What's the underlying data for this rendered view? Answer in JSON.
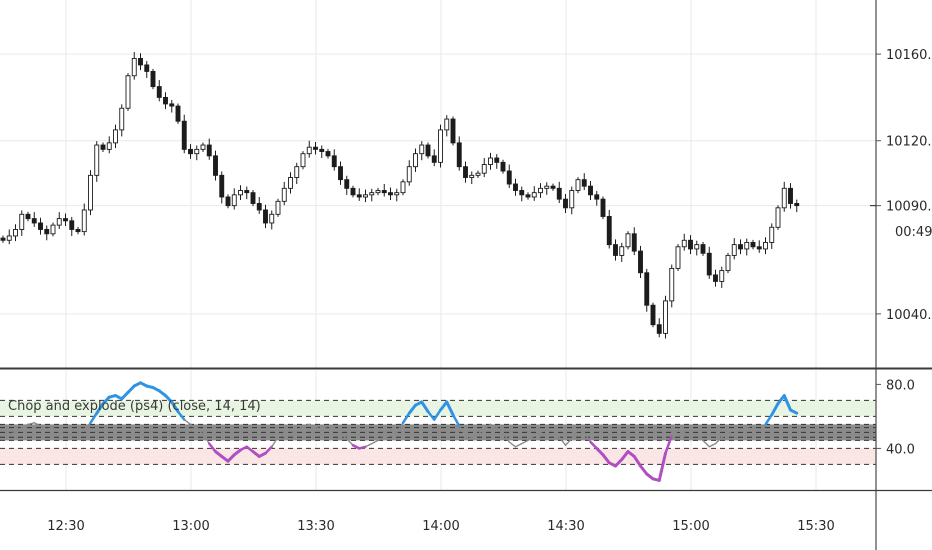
{
  "chart_data": [
    {
      "type": "candlestick",
      "pane": "price",
      "ylim": [
        10015,
        10185
      ],
      "y_ticks": [
        {
          "value": 10040,
          "label": "10040.0"
        },
        {
          "value": 10090,
          "label": "10090.0"
        },
        {
          "value": 10120,
          "label": "10120.0"
        },
        {
          "value": 10160,
          "label": "10160.0"
        }
      ],
      "current_price_label": "10090.0",
      "countdown_label": "00:49",
      "series": [
        {
          "name": "close",
          "values": [
            10074,
            10076,
            10079,
            10086,
            10084,
            10082,
            10079,
            10077,
            10081,
            10084,
            10083,
            10079,
            10078,
            10088,
            10104,
            10118,
            10116,
            10119,
            10125,
            10135,
            10150,
            10158,
            10155,
            10152,
            10145,
            10140,
            10137,
            10136,
            10129,
            10116,
            10114,
            10116,
            10118,
            10113,
            10104,
            10094,
            10090,
            10095,
            10097,
            10096,
            10091,
            10088,
            10082,
            10086,
            10092,
            10098,
            10103,
            10108,
            10114,
            10117,
            10116,
            10115,
            10113,
            10108,
            10102,
            10098,
            10095,
            10094,
            10095,
            10096,
            10097,
            10096,
            10095,
            10096,
            10101,
            10108,
            10114,
            10118,
            10113,
            10110,
            10125,
            10130,
            10119,
            10108,
            10103,
            10104,
            10105,
            10109,
            10112,
            10110,
            10106,
            10100,
            10097,
            10095,
            10094,
            10096,
            10098,
            10099,
            10098,
            10093,
            10089,
            10097,
            10102,
            10099,
            10095,
            10093,
            10085,
            10072,
            10067,
            10071,
            10077,
            10069,
            10059,
            10044,
            10035,
            10031,
            10046,
            10061,
            10071,
            10074,
            10070,
            10072,
            10068,
            10058,
            10055,
            10060,
            10067,
            10072,
            10070,
            10073,
            10071,
            10070,
            10073,
            10080,
            10089,
            10098,
            10091,
            10090
          ]
        }
      ]
    },
    {
      "type": "line",
      "pane": "indicator",
      "title": "Chop and explode (ps4) (close, 14, 14)",
      "ylim": [
        14,
        89
      ],
      "y_ticks": [
        {
          "value": 80,
          "label": "80.0"
        },
        {
          "value": 40,
          "label": "40.0"
        }
      ],
      "reference_lines": [
        70,
        60,
        55,
        53,
        50,
        47,
        45,
        40,
        30
      ],
      "bands": [
        {
          "from": 60,
          "to": 70,
          "color": "#e9f5e3"
        },
        {
          "from": 30,
          "to": 40,
          "color": "#fbe6e6"
        },
        {
          "from": 45,
          "to": 55,
          "color": "#7e7e7e"
        }
      ],
      "thresholds": {
        "upper": 60,
        "lower": 40
      },
      "colors": {
        "upper": "#2f93e6",
        "lower": "#b04ec2",
        "mid": "#8a8a8a"
      },
      "series": [
        {
          "values": [
            48,
            49,
            50,
            53,
            55,
            56,
            54,
            52,
            53,
            50,
            49,
            48,
            49,
            52,
            56,
            62,
            68,
            72,
            73,
            71,
            75,
            79,
            81,
            79,
            78,
            76,
            73,
            69,
            63,
            58,
            55,
            52,
            49,
            43,
            38,
            35,
            32,
            36,
            39,
            41,
            38,
            35,
            37,
            41,
            47,
            50,
            49,
            51,
            54,
            55,
            53,
            52,
            54,
            53,
            49,
            46,
            42,
            40,
            41,
            43,
            45,
            47,
            48,
            50,
            56,
            62,
            67,
            69,
            63,
            58,
            64,
            69,
            61,
            54,
            48,
            47,
            49,
            52,
            55,
            53,
            50,
            44,
            41,
            43,
            45,
            48,
            50,
            52,
            51,
            47,
            42,
            46,
            52,
            50,
            44,
            40,
            36,
            31,
            29,
            33,
            38,
            35,
            29,
            24,
            21,
            20,
            37,
            48,
            51,
            50,
            47,
            49,
            45,
            41,
            43,
            47,
            49,
            52,
            51,
            53,
            52,
            51,
            55,
            61,
            68,
            73,
            64,
            62
          ]
        }
      ]
    }
  ],
  "x_axis": {
    "tick_labels": [
      "12:30",
      "13:00",
      "13:30",
      "14:00",
      "14:30",
      "15:00",
      "15:30"
    ]
  }
}
